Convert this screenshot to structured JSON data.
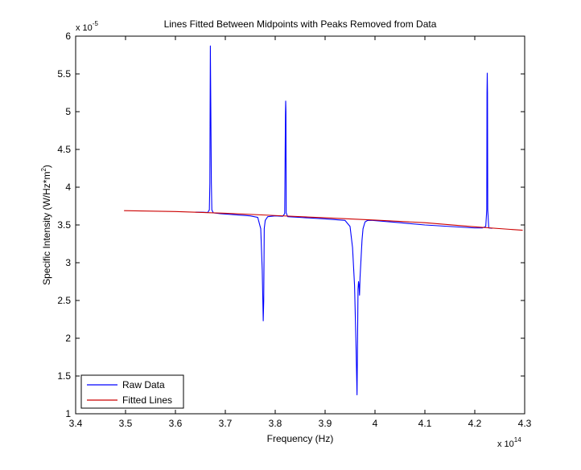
{
  "chart_data": {
    "type": "line",
    "title": "Lines Fitted Between Midpoints with Peaks Removed from Data",
    "xlabel": "Frequency (Hz)",
    "ylabel_main": "Specific Intensity (W/Hz*m",
    "ylabel_sup": "2",
    "ylabel_close": ")",
    "x_multiplier_base": "x 10",
    "x_multiplier_exp": "14",
    "y_multiplier_base": "x 10",
    "y_multiplier_exp": "-5",
    "xlim": [
      3.4,
      4.3
    ],
    "ylim": [
      1,
      6
    ],
    "xticks": [
      3.4,
      3.5,
      3.6,
      3.7,
      3.8,
      3.9,
      4.0,
      4.1,
      4.2,
      4.3
    ],
    "xtick_labels": [
      "3.4",
      "3.5",
      "3.6",
      "3.7",
      "3.8",
      "3.9",
      "4",
      "4.1",
      "4.2",
      "4.3"
    ],
    "yticks": [
      1,
      1.5,
      2,
      2.5,
      3,
      3.5,
      4,
      4.5,
      5,
      5.5,
      6
    ],
    "ytick_labels": [
      "1",
      "1.5",
      "2",
      "2.5",
      "3",
      "3.5",
      "4",
      "4.5",
      "5",
      "5.5",
      "6"
    ],
    "legend_position": "bottom-left",
    "grid": false,
    "series": [
      {
        "name": "Raw Data",
        "color": "#0000ff",
        "x": [
          3.64,
          3.655,
          3.665,
          3.668,
          3.669,
          3.67,
          3.671,
          3.672,
          3.673,
          3.676,
          3.69,
          3.72,
          3.75,
          3.765,
          3.771,
          3.774,
          3.776,
          3.777,
          3.778,
          3.78,
          3.785,
          3.8,
          3.815,
          3.819,
          3.8205,
          3.821,
          3.8215,
          3.822,
          3.825,
          3.85,
          3.9,
          3.94,
          3.95,
          3.955,
          3.959,
          3.962,
          3.964,
          3.966,
          3.967,
          3.968,
          3.969,
          3.97,
          3.972,
          3.974,
          3.976,
          3.98,
          3.985,
          3.995,
          4.05,
          4.1,
          4.15,
          4.2,
          4.215,
          4.222,
          4.224,
          4.2245,
          4.225,
          4.2255,
          4.226,
          4.228,
          4.235
        ],
        "y": [
          3.67,
          3.668,
          3.666,
          3.7,
          4.05,
          5.87,
          4.98,
          4.06,
          3.7,
          3.66,
          3.65,
          3.635,
          3.62,
          3.6,
          3.45,
          2.9,
          2.23,
          2.5,
          3.45,
          3.56,
          3.61,
          3.62,
          3.615,
          3.65,
          4.95,
          5.14,
          5.0,
          3.66,
          3.61,
          3.6,
          3.58,
          3.56,
          3.48,
          3.2,
          2.7,
          1.9,
          1.25,
          2.65,
          2.75,
          2.7,
          2.57,
          2.8,
          3.05,
          3.3,
          3.45,
          3.54,
          3.56,
          3.56,
          3.53,
          3.5,
          3.48,
          3.46,
          3.46,
          3.48,
          3.7,
          5.25,
          5.51,
          5.25,
          3.7,
          3.46,
          3.455
        ]
      },
      {
        "name": "Fitted Lines",
        "color": "#cc0000",
        "x": [
          3.497,
          3.6,
          3.7,
          3.8,
          3.9,
          4.0,
          4.1,
          4.2,
          4.296
        ],
        "y": [
          3.69,
          3.677,
          3.655,
          3.625,
          3.595,
          3.565,
          3.53,
          3.475,
          3.43
        ]
      }
    ]
  }
}
